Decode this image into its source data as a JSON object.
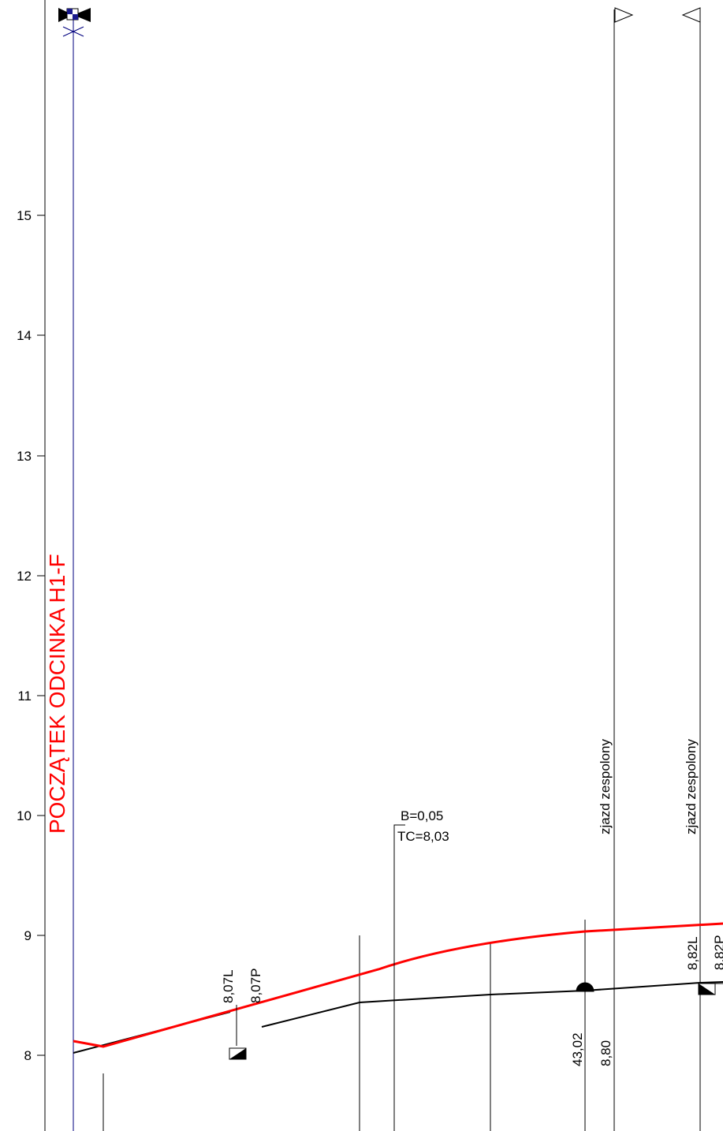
{
  "colors": {
    "design_line": "#ff0000",
    "title": "#ff0000",
    "ground_line": "#000000",
    "start_line": "#00007f",
    "background": "#ffffff"
  },
  "axis": {
    "ticks": [
      "15",
      "14",
      "13",
      "12",
      "11",
      "10",
      "9",
      "8"
    ]
  },
  "title": "POCZĄTEK ODCINKA H1-F",
  "labels": {
    "ground_a_left": "8,07L",
    "ground_a_right": "8,07P",
    "break_b": "B=0,05",
    "break_tc": "TC=8,03",
    "driveway_1": "zjazd zespolony",
    "driveway_2": "zjazd zespolony",
    "station_value": "43,02",
    "station_elev": "8,80",
    "ground_b_left": "8,82L",
    "ground_b_right": "8,82P"
  },
  "icons": {
    "start_marker": "bowtie-marker-icon",
    "direction_right": "triangle-right-icon",
    "direction_left": "triangle-left-icon",
    "gully": "gully-inlet-icon",
    "manhole": "manhole-half-circle-icon"
  }
}
